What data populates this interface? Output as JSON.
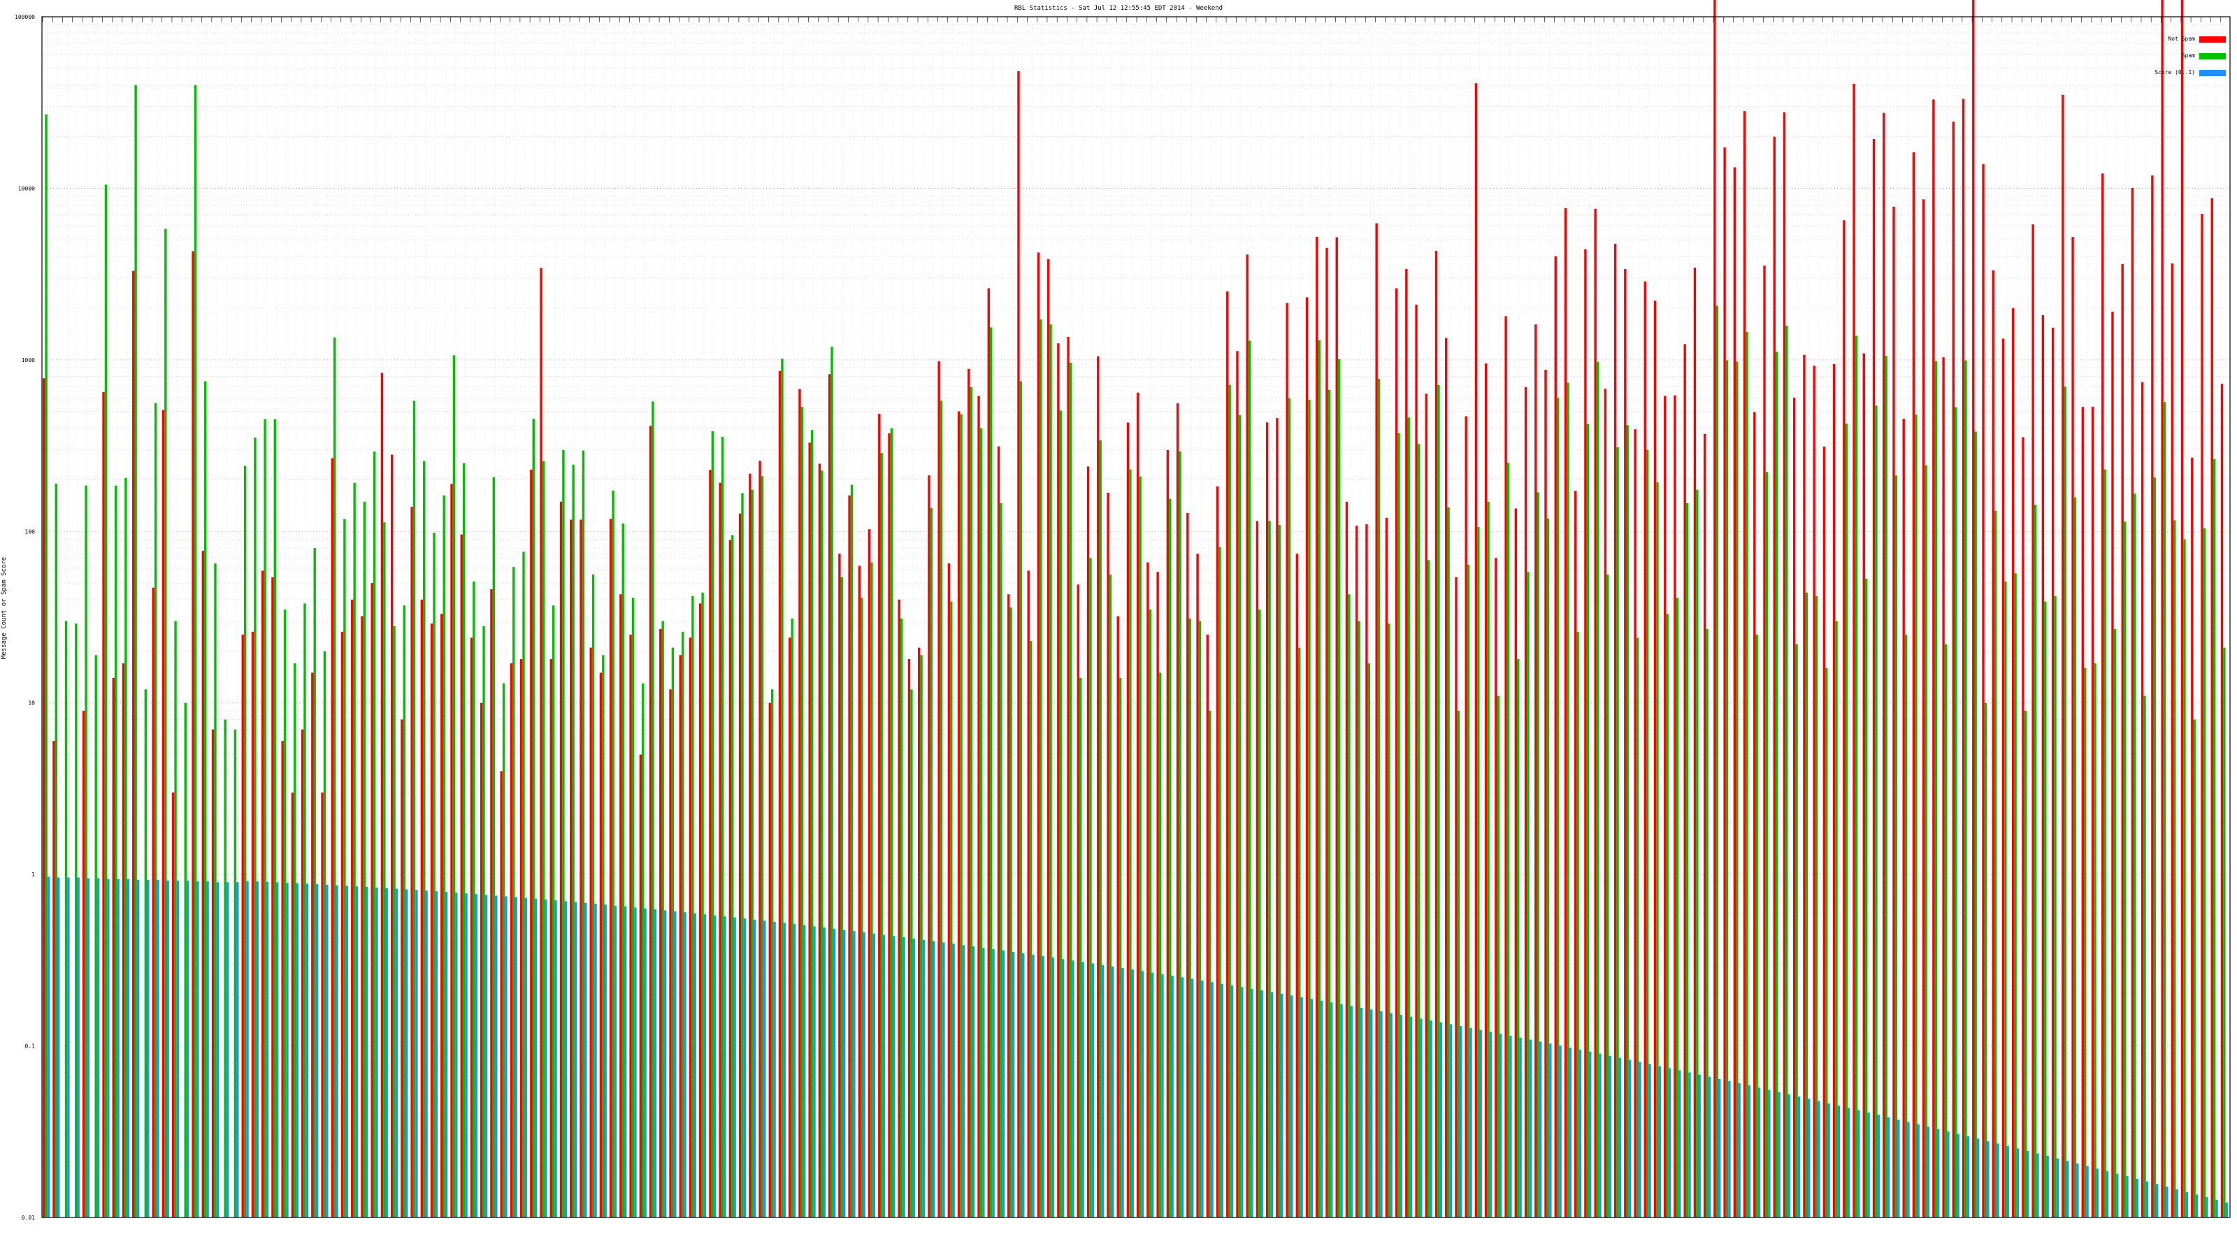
{
  "chart_data": {
    "type": "bar",
    "title": "RBL Statistics - Sat Jul 12 12:55:45 EDT 2014 - Weekend",
    "xlabel": "",
    "ylabel": "Message Count or Spam Score",
    "y_scale": "log",
    "ylim": [
      0.01,
      100000
    ],
    "y_ticks": [
      "0.01",
      "0.1",
      "1",
      "10",
      "100",
      "1000",
      "10000",
      "100000"
    ],
    "grid": true,
    "legend_position": "top-right",
    "n_categories": 220,
    "series": [
      {
        "name": "Not Spam",
        "color": "#ff0000"
      },
      {
        "name": "Spam",
        "color": "#00c000"
      },
      {
        "name": "Score (0..1)",
        "color": "#1e90ff"
      }
    ],
    "sample_values": {
      "Spam": [
        27000,
        190,
        30,
        29,
        185,
        19,
        10500,
        185,
        205,
        40000,
        12,
        560,
        5800,
        30,
        10,
        40000,
        750,
        65,
        8,
        7
      ],
      "Not Spam": [
        780,
        6,
        0,
        0,
        9,
        0,
        650,
        14,
        17,
        3300,
        0,
        47,
        510,
        3,
        0,
        4300,
        77,
        7,
        0,
        0
      ],
      "Score (0..1)": [
        0.97,
        0.96,
        0.96,
        0.96,
        0.95,
        0.95,
        0.94,
        0.94,
        0.94,
        0.93,
        0.93,
        0.93,
        0.92,
        0.92,
        0.92,
        0.91,
        0.91,
        0.9,
        0.9,
        0.9
      ]
    }
  }
}
